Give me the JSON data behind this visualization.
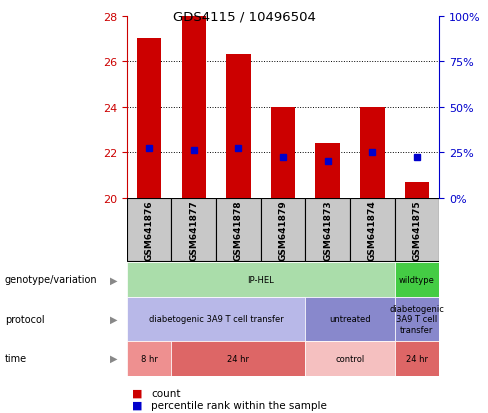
{
  "title": "GDS4115 / 10496504",
  "samples": [
    "GSM641876",
    "GSM641877",
    "GSM641878",
    "GSM641879",
    "GSM641873",
    "GSM641874",
    "GSM641875"
  ],
  "bar_tops": [
    27.0,
    28.0,
    26.3,
    24.0,
    22.4,
    24.0,
    20.7
  ],
  "bar_bottoms": [
    20.0,
    20.0,
    20.0,
    20.0,
    20.0,
    20.0,
    20.0
  ],
  "percentile_values": [
    22.2,
    22.1,
    22.2,
    21.8,
    21.6,
    22.0,
    21.8
  ],
  "ylim_left": [
    20,
    28
  ],
  "ylim_right": [
    0,
    100
  ],
  "yticks_left": [
    20,
    22,
    24,
    26,
    28
  ],
  "yticks_right": [
    0,
    25,
    50,
    75,
    100
  ],
  "ytick_labels_right": [
    "0%",
    "25%",
    "50%",
    "75%",
    "100%"
  ],
  "bar_color": "#cc0000",
  "percentile_color": "#0000cc",
  "left_tick_color": "#cc0000",
  "right_tick_color": "#0000cc",
  "genotype_row": {
    "label": "genotype/variation",
    "groups": [
      {
        "text": "IP-HEL",
        "span": [
          0,
          6
        ],
        "color": "#aaddaa"
      },
      {
        "text": "wildtype",
        "span": [
          6,
          7
        ],
        "color": "#44cc44"
      }
    ]
  },
  "protocol_row": {
    "label": "protocol",
    "groups": [
      {
        "text": "diabetogenic 3A9 T cell transfer",
        "span": [
          0,
          4
        ],
        "color": "#b8b8e8"
      },
      {
        "text": "untreated",
        "span": [
          4,
          6
        ],
        "color": "#8888cc"
      },
      {
        "text": "diabetogenic\n3A9 T cell\ntransfer",
        "span": [
          6,
          7
        ],
        "color": "#8888cc"
      }
    ]
  },
  "time_row": {
    "label": "time",
    "groups": [
      {
        "text": "8 hr",
        "span": [
          0,
          1
        ],
        "color": "#ee9090"
      },
      {
        "text": "24 hr",
        "span": [
          1,
          4
        ],
        "color": "#dd6666"
      },
      {
        "text": "control",
        "span": [
          4,
          6
        ],
        "color": "#f5c0c0"
      },
      {
        "text": "24 hr",
        "span": [
          6,
          7
        ],
        "color": "#dd6666"
      }
    ]
  },
  "legend_count_color": "#cc0000",
  "legend_percentile_color": "#0000cc",
  "header_bg": "#c8c8c8"
}
